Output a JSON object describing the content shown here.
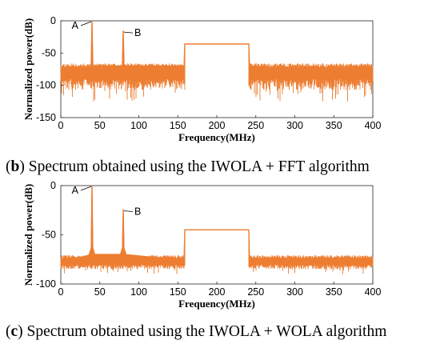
{
  "captions": [
    {
      "letter": "b",
      "text": " Spectrum obtained using the IWOLA + FFT algorithm"
    },
    {
      "letter": "c",
      "text": " Spectrum obtained using the IWOLA + WOLA algorithm"
    }
  ],
  "chart_data": [
    {
      "type": "line",
      "panel": "b",
      "title": "",
      "xlabel": "Frequency(MHz)",
      "ylabel": "Normalized power(dB)",
      "xlim": [
        0,
        400
      ],
      "ylim": [
        -150,
        0
      ],
      "xticks": [
        0,
        50,
        100,
        150,
        200,
        250,
        300,
        350,
        400
      ],
      "yticks": [
        0,
        -50,
        -100,
        -150
      ],
      "grid": false,
      "line_color": "#ed7d31",
      "noise_floor_db": -85,
      "noise_band_db": [
        -125,
        -70
      ],
      "series": [
        {
          "x": [
            0,
            39,
            40,
            41,
            79,
            80,
            81,
            158,
            159,
            160,
            240,
            241,
            242,
            400
          ],
          "y": [
            -85,
            -70,
            0,
            -70,
            -70,
            -15,
            -70,
            -70,
            -36,
            -36,
            -36,
            -36,
            -70,
            -85
          ]
        }
      ],
      "annotations": [
        {
          "label": "A",
          "x": 40,
          "y": 0
        },
        {
          "label": "B",
          "x": 80,
          "y": -15
        }
      ]
    },
    {
      "type": "line",
      "panel": "c",
      "title": "",
      "xlabel": "Frequency(MHz)",
      "ylabel": "Normalized power(dB)",
      "xlim": [
        0,
        400
      ],
      "ylim": [
        -100,
        0
      ],
      "xticks": [
        0,
        50,
        100,
        150,
        200,
        250,
        300,
        350,
        400
      ],
      "yticks": [
        0,
        -50,
        -100
      ],
      "grid": false,
      "line_color": "#ed7d31",
      "noise_floor_db": -79,
      "noise_band_db": [
        -90,
        -72
      ],
      "series": [
        {
          "x": [
            0,
            39,
            40,
            41,
            79,
            80,
            81,
            158,
            159,
            160,
            240,
            241,
            242,
            400
          ],
          "y": [
            -79,
            -70,
            0,
            -70,
            -70,
            -24,
            -70,
            -76,
            -45,
            -45,
            -45,
            -45,
            -76,
            -79
          ]
        }
      ],
      "annotations": [
        {
          "label": "A",
          "x": 40,
          "y": 0
        },
        {
          "label": "B",
          "x": 80,
          "y": -24
        }
      ]
    }
  ]
}
